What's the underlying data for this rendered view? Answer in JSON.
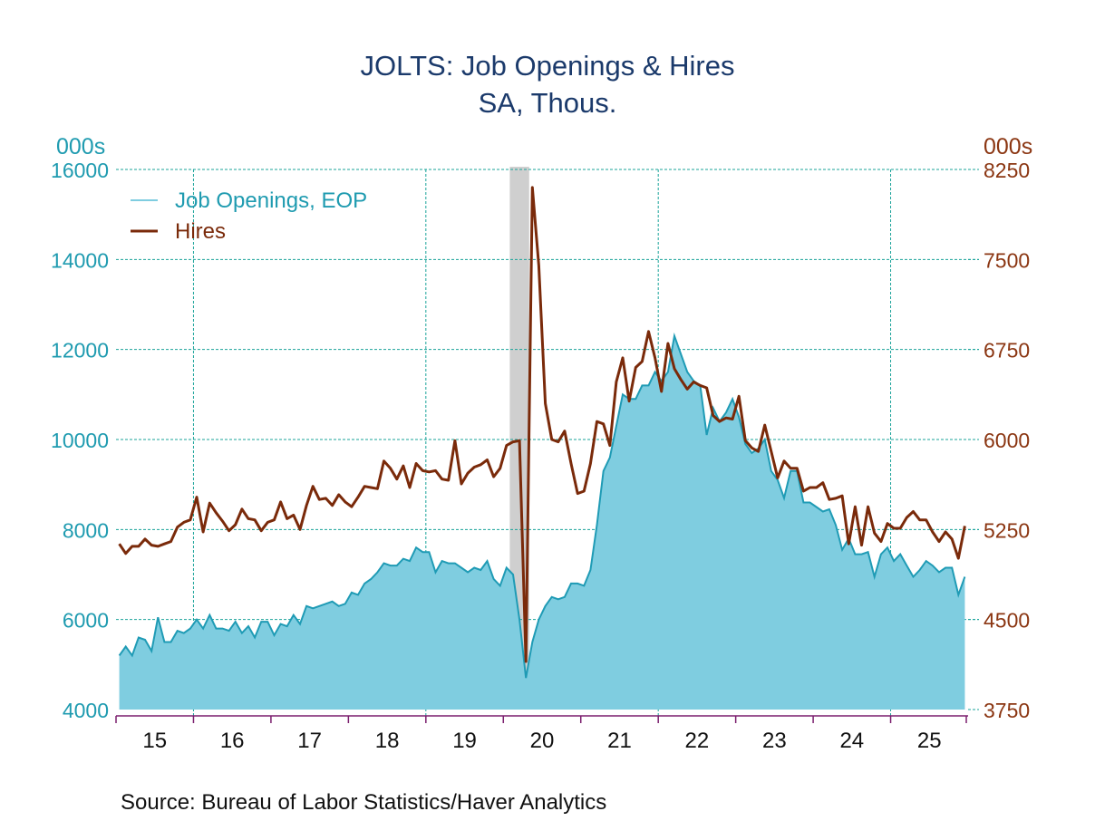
{
  "chart_data": {
    "type": "line",
    "title": "JOLTS: Job Openings & Hires",
    "subtitle": "SA, Thous.",
    "left_axis": {
      "unit_label": "000s",
      "ylim": [
        4000,
        16000
      ],
      "ticks": [
        "4000",
        "6000",
        "8000",
        "10000",
        "12000",
        "14000",
        "16000"
      ],
      "color": "#1f9bb0"
    },
    "right_axis": {
      "unit_label": "000s",
      "ylim": [
        3750,
        8250
      ],
      "ticks": [
        "3750",
        "4500",
        "5250",
        "6000",
        "6750",
        "7500",
        "8250"
      ],
      "color": "#8b3612"
    },
    "x_tick_labels": [
      "15",
      "16",
      "17",
      "18",
      "19",
      "20",
      "21",
      "22",
      "23",
      "24",
      "25"
    ],
    "x_start": "2015-01",
    "grid": true,
    "legend_placement": "top-left",
    "recession_shading": [
      "2020-02",
      "2020-04"
    ],
    "series": [
      {
        "name": "Job Openings, EOP",
        "axis": "left",
        "style": "area",
        "line_color": "#1f9bb5",
        "fill_color": "#7fcde0",
        "values": [
          5200,
          5400,
          5200,
          5600,
          5550,
          5300,
          6050,
          5500,
          5500,
          5750,
          5700,
          5800,
          6000,
          5800,
          6100,
          5800,
          5800,
          5750,
          5950,
          5700,
          5850,
          5600,
          5950,
          5950,
          5650,
          5900,
          5850,
          6100,
          5900,
          6300,
          6250,
          6300,
          6350,
          6400,
          6300,
          6350,
          6600,
          6550,
          6800,
          6900,
          7050,
          7250,
          7200,
          7200,
          7350,
          7300,
          7600,
          7500,
          7500,
          7050,
          7300,
          7250,
          7250,
          7150,
          7050,
          7150,
          7100,
          7300,
          6900,
          6750,
          7150,
          7000,
          6000,
          4700,
          5500,
          6000,
          6300,
          6500,
          6450,
          6500,
          6800,
          6800,
          6750,
          7100,
          8100,
          9300,
          9600,
          10300,
          11000,
          10900,
          10900,
          11200,
          11200,
          11500,
          11300,
          11500,
          12300,
          11900,
          11500,
          11300,
          11200,
          10100,
          10700,
          10400,
          10600,
          10900,
          10500,
          9900,
          9700,
          9800,
          10000,
          9300,
          9100,
          8700,
          9300,
          9300,
          8600,
          8600,
          8500,
          8400,
          8450,
          8100,
          7550,
          7800,
          7450,
          7450,
          7500,
          6950,
          7450,
          7600,
          7300,
          7450,
          7200,
          6950,
          7100,
          7300,
          7200,
          7050,
          7150,
          7150,
          6550,
          6950
        ]
      },
      {
        "name": "Hires",
        "axis": "right",
        "style": "line",
        "line_color": "#7a2a0a",
        "values": [
          5130,
          5050,
          5110,
          5110,
          5170,
          5120,
          5110,
          5130,
          5150,
          5270,
          5310,
          5330,
          5520,
          5230,
          5470,
          5390,
          5320,
          5240,
          5290,
          5420,
          5340,
          5330,
          5240,
          5310,
          5330,
          5480,
          5340,
          5370,
          5250,
          5450,
          5610,
          5500,
          5510,
          5450,
          5540,
          5480,
          5440,
          5520,
          5610,
          5600,
          5590,
          5820,
          5760,
          5670,
          5780,
          5600,
          5800,
          5740,
          5730,
          5740,
          5670,
          5660,
          5990,
          5630,
          5720,
          5770,
          5790,
          5830,
          5690,
          5760,
          5950,
          5980,
          5990,
          4150,
          8100,
          7450,
          6300,
          6000,
          5980,
          6070,
          5800,
          5550,
          5570,
          5800,
          6150,
          6130,
          5950,
          6480,
          6680,
          6320,
          6600,
          6650,
          6900,
          6680,
          6400,
          6800,
          6590,
          6500,
          6420,
          6480,
          6450,
          6430,
          6200,
          6150,
          6180,
          6170,
          6360,
          5990,
          5930,
          5900,
          6120,
          5900,
          5680,
          5820,
          5760,
          5760,
          5570,
          5600,
          5600,
          5640,
          5500,
          5510,
          5530,
          5130,
          5440,
          5120,
          5440,
          5220,
          5150,
          5300,
          5260,
          5260,
          5350,
          5400,
          5330,
          5330,
          5230,
          5150,
          5230,
          5170,
          5010,
          5280
        ]
      }
    ],
    "source": "Source:  Bureau of Labor Statistics/Haver Analytics"
  }
}
